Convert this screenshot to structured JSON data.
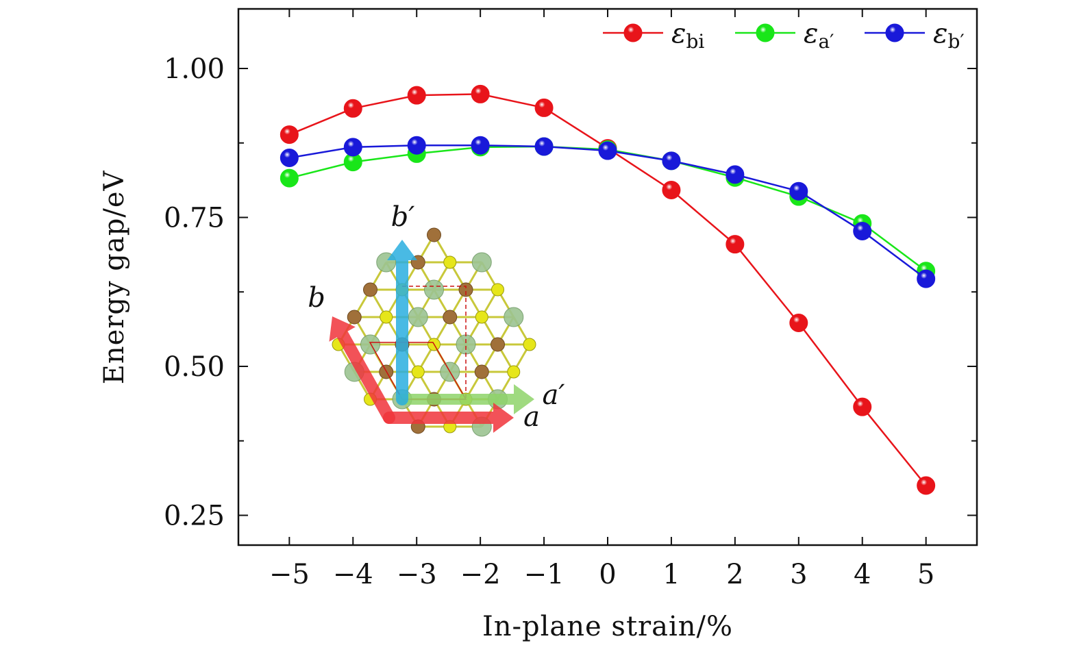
{
  "chart_data": {
    "type": "line",
    "title": "",
    "xlabel": "In-plane strain/%",
    "ylabel": "Energy gap/eV",
    "x": [
      -5,
      -4,
      -3,
      -2,
      -1,
      0,
      1,
      2,
      3,
      4,
      5
    ],
    "x_tick_labels": [
      "−5",
      "−4",
      "−3",
      "−2",
      "−1",
      "0",
      "1",
      "2",
      "3",
      "4",
      "5"
    ],
    "xlim": [
      -5.8,
      5.8
    ],
    "ylim": [
      0.2,
      1.1
    ],
    "y_ticks": [
      0.25,
      0.5,
      0.75,
      1.0
    ],
    "y_tick_labels": [
      "0.25",
      "0.50",
      "0.75",
      "1.00"
    ],
    "y_minor_ticks": [
      0.375,
      0.625,
      0.875
    ],
    "grid": false,
    "legend_position": "top-right",
    "series": [
      {
        "name": "ε_bi",
        "legend_base": "ε",
        "legend_sub": "bi",
        "color": "#e8141a",
        "values": [
          0.889,
          0.933,
          0.955,
          0.957,
          0.934,
          0.866,
          0.796,
          0.705,
          0.573,
          0.432,
          0.3
        ]
      },
      {
        "name": "ε_a′",
        "legend_base": "ε",
        "legend_sub": "a′",
        "color": "#19e619",
        "values": [
          0.816,
          0.843,
          0.857,
          0.868,
          0.869,
          0.864,
          0.845,
          0.817,
          0.785,
          0.74,
          0.66
        ]
      },
      {
        "name": "ε_b′",
        "legend_base": "ε",
        "legend_sub": "b′",
        "color": "#1919d9",
        "values": [
          0.85,
          0.868,
          0.871,
          0.871,
          0.869,
          0.862,
          0.845,
          0.822,
          0.794,
          0.727,
          0.647
        ]
      }
    ],
    "inset": {
      "description_labels": [
        "b′",
        "b",
        "a′",
        "a"
      ],
      "arrow_colors": {
        "a": "#f0353b",
        "b": "#f0353b",
        "a_prime": "#8fd46a",
        "b_prime": "#2aaee0"
      },
      "atom_colors": {
        "sulfur": "#e6e61a",
        "metal_brown": "#a0703a",
        "metal_green": "#9cc492"
      }
    }
  }
}
